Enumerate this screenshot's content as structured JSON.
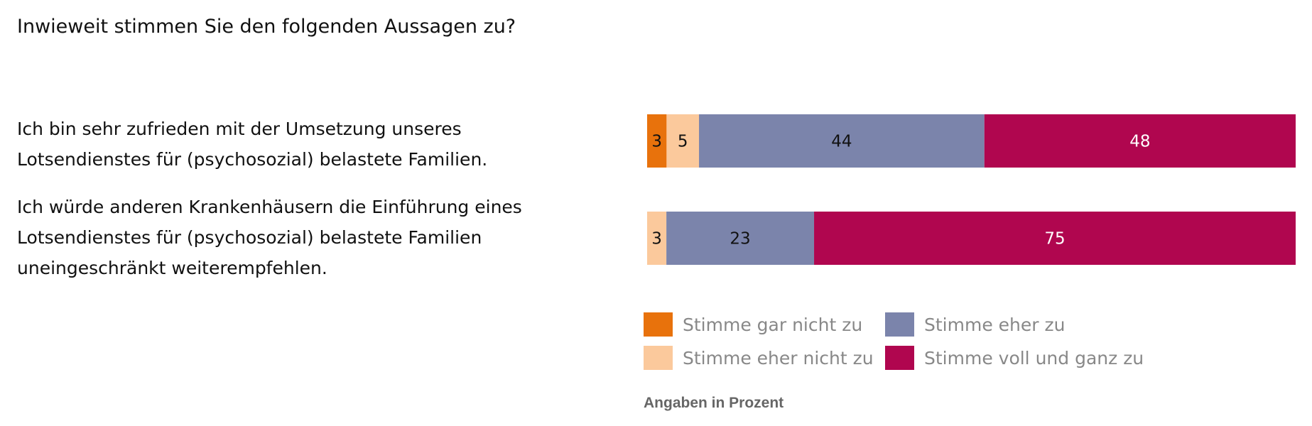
{
  "chart_data": {
    "type": "bar",
    "orientation": "horizontal",
    "stacked": true,
    "title": "Inwieweit stimmen Sie den folgenden Aussagen zu?",
    "categories": [
      "Ich bin sehr zufrieden mit der Umsetzung unseres Lotsendienstes für (psychosozial) belastete Familien.",
      "Ich würde anderen Krankenhäusern die Einführung eines Lotsendienstes für (psychosozial) belastete Familien uneingeschränkt weiterempfehlen."
    ],
    "category_lines": [
      [
        "Ich bin sehr zufrieden mit der Umsetzung unseres",
        "Lotsendienstes für (psychosozial) belastete Familien."
      ],
      [
        "Ich würde anderen Krankenhäusern die Einführung eines",
        "Lotsendienstes für (psychosozial) belastete Familien",
        "uneingeschränkt weiterempfehlen."
      ]
    ],
    "series": [
      {
        "name": "Stimme gar nicht zu",
        "values": [
          3,
          0
        ],
        "color": "#e8720c",
        "label_color": "#111"
      },
      {
        "name": "Stimme eher nicht zu",
        "values": [
          5,
          3
        ],
        "color": "#fbc99c",
        "label_color": "#111"
      },
      {
        "name": "Stimme eher zu",
        "values": [
          44,
          23
        ],
        "color": "#7b84ab",
        "label_color": "#111"
      },
      {
        "name": "Stimme voll und ganz zu",
        "values": [
          48,
          75
        ],
        "color": "#b0064f",
        "label_color": "#fff"
      }
    ],
    "legend_position": "bottom",
    "note": "Angaben in Prozent",
    "grid": false
  }
}
